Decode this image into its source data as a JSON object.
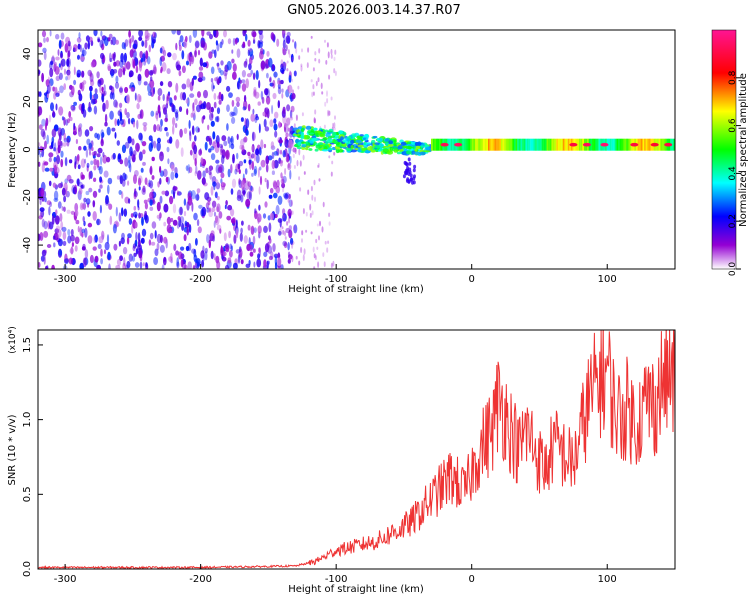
{
  "title": "GN05.2026.003.14.37.R07",
  "chart_data": [
    {
      "type": "heatmap",
      "title": "GN05.2026.003.14.37.R07",
      "xlabel": "Height of straight line (km)",
      "ylabel": "Frequency (Hz)",
      "xlim": [
        -320,
        150
      ],
      "ylim": [
        -50,
        50
      ],
      "x_ticks": [
        -300,
        -200,
        -100,
        0,
        100
      ],
      "y_ticks": [
        -40,
        -20,
        0,
        20,
        40
      ],
      "colorbar": {
        "label": "Normalized spectral amplitude",
        "range": [
          0.0,
          1.0
        ],
        "ticks": [
          0.0,
          0.2,
          0.4,
          0.6,
          0.8
        ],
        "colormap": [
          "#ffffff",
          "#9400d3",
          "#0000ff",
          "#00ffff",
          "#00ff00",
          "#ffff00",
          "#ff0000",
          "#ff1493"
        ]
      },
      "features": [
        {
          "name": "noise",
          "x_range": [
            -320,
            -130
          ],
          "freq_range": [
            -50,
            50
          ],
          "amplitude": [
            0.05,
            0.25
          ]
        },
        {
          "name": "transition",
          "x_range": [
            -130,
            -30
          ],
          "freq_center": [
            5,
            0
          ],
          "amplitude": [
            0.3,
            0.6
          ]
        },
        {
          "name": "signal-band",
          "x_range": [
            -30,
            150
          ],
          "freq_center": 2,
          "amplitude": [
            0.5,
            0.95
          ]
        }
      ]
    },
    {
      "type": "line",
      "xlabel": "Height of straight line (km)",
      "ylabel": "SNR (10 * v/v)",
      "y_multiplier": "(x10⁴)",
      "xlim": [
        -320,
        150
      ],
      "ylim": [
        0,
        1.6
      ],
      "x_ticks": [
        -300,
        -200,
        -100,
        0,
        100
      ],
      "y_ticks": [
        0.0,
        0.5,
        1.0,
        1.5
      ],
      "color": "#ee3333",
      "series": [
        {
          "name": "SNR",
          "x": [
            -320,
            -280,
            -240,
            -200,
            -160,
            -130,
            -115,
            -100,
            -85,
            -70,
            -55,
            -45,
            -35,
            -25,
            -15,
            -5,
            5,
            15,
            20,
            25,
            30,
            35,
            40,
            45,
            50,
            55,
            60,
            65,
            70,
            75,
            80,
            85,
            90,
            95,
            100,
            105,
            110,
            115,
            120,
            125,
            130,
            135,
            140,
            145,
            150
          ],
          "values": [
            0.01,
            0.01,
            0.01,
            0.01,
            0.015,
            0.02,
            0.05,
            0.12,
            0.15,
            0.18,
            0.25,
            0.3,
            0.4,
            0.5,
            0.6,
            0.5,
            0.75,
            0.9,
            1.1,
            1.0,
            0.88,
            0.76,
            0.9,
            0.82,
            0.7,
            0.65,
            0.8,
            0.78,
            0.72,
            0.68,
            0.85,
            1.05,
            1.15,
            1.25,
            1.3,
            1.05,
            0.98,
            1.05,
            0.95,
            1.0,
            1.1,
            1.05,
            1.2,
            1.25,
            1.22
          ]
        }
      ]
    }
  ]
}
